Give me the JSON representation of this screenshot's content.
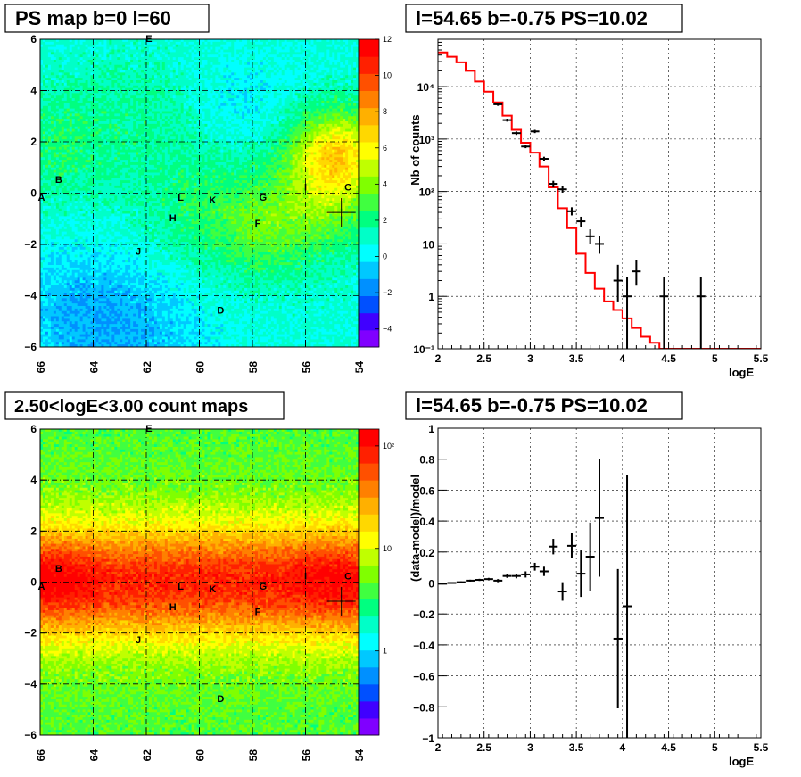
{
  "chart_data": [
    {
      "type": "heatmap",
      "title": "PS map b=0 l=60",
      "x_ticks": [
        "66",
        "64",
        "62",
        "60",
        "58",
        "56",
        "54"
      ],
      "y_ticks": [
        "6",
        "4",
        "2",
        "0",
        "−2",
        "−4",
        "−6"
      ],
      "xlim": [
        66,
        54
      ],
      "ylim": [
        -6,
        6
      ],
      "color_scale": {
        "ticks": [
          "12",
          "10",
          "8",
          "6",
          "4",
          "2",
          "0",
          "−2",
          "−4"
        ],
        "range": [
          -5,
          12
        ]
      },
      "sources": [
        {
          "label": "A",
          "l": 65.95,
          "b": -0.3
        },
        {
          "label": "B",
          "l": 65.3,
          "b": 0.4
        },
        {
          "label": "C",
          "l": 54.4,
          "b": 0.1
        },
        {
          "label": "D",
          "l": 59.2,
          "b": -4.7
        },
        {
          "label": "E",
          "l": 61.9,
          "b": 5.9
        },
        {
          "label": "F",
          "l": 57.8,
          "b": -1.3
        },
        {
          "label": "G",
          "l": 57.6,
          "b": -0.3
        },
        {
          "label": "H",
          "l": 61.0,
          "b": -1.1
        },
        {
          "label": "I",
          "l": 56.0,
          "b": 0.1
        },
        {
          "label": "J",
          "l": 62.3,
          "b": -2.4
        },
        {
          "label": "K",
          "l": 59.5,
          "b": -0.4
        },
        {
          "label": "L",
          "l": 60.7,
          "b": -0.3
        }
      ],
      "marker": {
        "l": 54.65,
        "b": -0.75
      }
    },
    {
      "type": "line",
      "title": "l=54.65 b=-0.75 PS=10.02",
      "xlabel": "logE",
      "ylabel": "Nb of counts",
      "xlim": [
        2,
        5.5
      ],
      "ylim": [
        0.1,
        80000
      ],
      "yscale": "log",
      "x_ticks": [
        "2",
        "2.5",
        "3",
        "3.5",
        "4",
        "4.5",
        "5",
        "5.5"
      ],
      "y_ticks": [
        {
          "v": 0.1,
          "label": "10⁻¹"
        },
        {
          "v": 1,
          "label": "1"
        },
        {
          "v": 10,
          "label": "10"
        },
        {
          "v": 100,
          "label": "10²"
        },
        {
          "v": 1000,
          "label": "10³"
        },
        {
          "v": 10000,
          "label": "10⁴"
        }
      ],
      "series": [
        {
          "kind": "step",
          "color": "#ff0000",
          "edges": [
            2,
            2.1,
            2.2,
            2.3,
            2.4,
            2.5,
            2.6,
            2.7,
            2.8,
            2.9,
            3.0,
            3.1,
            3.2,
            3.3,
            3.4,
            3.5,
            3.6,
            3.7,
            3.8,
            3.9,
            4.0,
            4.1,
            4.2,
            4.3,
            4.4,
            4.5,
            4.6,
            4.7,
            4.8,
            4.9,
            5.0,
            5.5
          ],
          "values": [
            45000,
            37000,
            29000,
            20000,
            12500,
            8000,
            5000,
            2800,
            1500,
            850,
            550,
            300,
            120,
            48,
            20,
            6.5,
            2.8,
            1.4,
            0.8,
            0.55,
            0.38,
            0.25,
            0.17,
            0.13,
            0.1,
            0.1,
            0.1,
            0.1,
            0.1,
            0.1,
            0.1
          ]
        },
        {
          "kind": "errorbar",
          "color": "#000000",
          "points": [
            {
              "x": 2.65,
              "y": 4600,
              "dy": [
                4300,
                4900
              ]
            },
            {
              "x": 2.75,
              "y": 2300,
              "dy": [
                2150,
                2450
              ]
            },
            {
              "x": 2.85,
              "y": 1300,
              "dy": [
                1200,
                1400
              ]
            },
            {
              "x": 2.95,
              "y": 720,
              "dy": [
                670,
                780
              ]
            },
            {
              "x": 3.05,
              "y": 1400,
              "dy": [
                1300,
                1500
              ]
            },
            {
              "x": 3.15,
              "y": 420,
              "dy": [
                380,
                460
              ]
            },
            {
              "x": 3.25,
              "y": 140,
              "dy": [
                120,
                160
              ]
            },
            {
              "x": 3.35,
              "y": 110,
              "dy": [
                95,
                125
              ]
            },
            {
              "x": 3.45,
              "y": 42,
              "dy": [
                35,
                50
              ]
            },
            {
              "x": 3.55,
              "y": 27,
              "dy": [
                21,
                33
              ]
            },
            {
              "x": 3.65,
              "y": 14,
              "dy": [
                10,
                19
              ]
            },
            {
              "x": 3.75,
              "y": 10,
              "dy": [
                6.5,
                14
              ]
            },
            {
              "x": 3.95,
              "y": 2,
              "dy": [
                0.8,
                4
              ]
            },
            {
              "x": 4.05,
              "y": 1,
              "dy": [
                0.1,
                2.3
              ]
            },
            {
              "x": 4.15,
              "y": 3,
              "dy": [
                1.6,
                5
              ]
            },
            {
              "x": 4.45,
              "y": 1,
              "dy": [
                0.1,
                2.3
              ]
            },
            {
              "x": 4.85,
              "y": 1,
              "dy": [
                0.1,
                2.3
              ]
            }
          ]
        }
      ]
    },
    {
      "type": "heatmap",
      "title": "2.50<logE<3.00 count maps",
      "x_ticks": [
        "66",
        "64",
        "62",
        "60",
        "58",
        "56",
        "54"
      ],
      "y_ticks": [
        "6",
        "4",
        "2",
        "0",
        "−2",
        "−4",
        "−6"
      ],
      "xlim": [
        66,
        54
      ],
      "ylim": [
        -6,
        6
      ],
      "color_scale": {
        "ticks": [
          "10²",
          "10",
          "1"
        ],
        "log": true
      },
      "sources": [
        {
          "label": "A",
          "l": 65.95,
          "b": -0.3
        },
        {
          "label": "B",
          "l": 65.3,
          "b": 0.4
        },
        {
          "label": "C",
          "l": 54.4,
          "b": 0.1
        },
        {
          "label": "D",
          "l": 59.2,
          "b": -4.7
        },
        {
          "label": "E",
          "l": 61.9,
          "b": 5.9
        },
        {
          "label": "F",
          "l": 57.8,
          "b": -1.3
        },
        {
          "label": "G",
          "l": 57.6,
          "b": -0.3
        },
        {
          "label": "H",
          "l": 61.0,
          "b": -1.1
        },
        {
          "label": "I",
          "l": 56.0,
          "b": 0.1
        },
        {
          "label": "J",
          "l": 62.3,
          "b": -2.4
        },
        {
          "label": "K",
          "l": 59.5,
          "b": -0.4
        },
        {
          "label": "L",
          "l": 60.7,
          "b": -0.3
        }
      ],
      "marker": {
        "l": 54.65,
        "b": -0.75
      }
    },
    {
      "type": "scatter",
      "title": "l=54.65 b=-0.75 PS=10.02",
      "xlabel": "logE",
      "ylabel": "(data-model)/model",
      "xlim": [
        2,
        5.5
      ],
      "ylim": [
        -1,
        1
      ],
      "x_ticks": [
        "2",
        "2.5",
        "3",
        "3.5",
        "4",
        "4.5",
        "5",
        "5.5"
      ],
      "y_ticks": [
        "1",
        "0.8",
        "0.6",
        "0.4",
        "0.2",
        "0",
        "−0.2",
        "−0.4",
        "−0.6",
        "−0.8",
        "−1"
      ],
      "points": [
        {
          "x": 2.05,
          "y": -0.005,
          "e": 0.004
        },
        {
          "x": 2.15,
          "y": 0.0,
          "e": 0.004
        },
        {
          "x": 2.25,
          "y": 0.005,
          "e": 0.005
        },
        {
          "x": 2.35,
          "y": 0.015,
          "e": 0.006
        },
        {
          "x": 2.45,
          "y": 0.02,
          "e": 0.007
        },
        {
          "x": 2.55,
          "y": 0.025,
          "e": 0.008
        },
        {
          "x": 2.65,
          "y": 0.015,
          "e": 0.01
        },
        {
          "x": 2.75,
          "y": 0.045,
          "e": 0.012
        },
        {
          "x": 2.85,
          "y": 0.045,
          "e": 0.015
        },
        {
          "x": 2.95,
          "y": 0.055,
          "e": 0.02
        },
        {
          "x": 3.05,
          "y": 0.105,
          "e": 0.025
        },
        {
          "x": 3.15,
          "y": 0.075,
          "e": 0.03
        },
        {
          "x": 3.25,
          "y": 0.235,
          "e": 0.05
        },
        {
          "x": 3.35,
          "y": -0.055,
          "e": 0.06
        },
        {
          "x": 3.45,
          "y": 0.24,
          "e": 0.08
        },
        {
          "x": 3.55,
          "y": 0.06,
          "e": 0.15
        },
        {
          "x": 3.65,
          "y": 0.17,
          "e": 0.22
        },
        {
          "x": 3.75,
          "y": 0.42,
          "e": 0.38
        },
        {
          "x": 3.95,
          "y": -0.36,
          "e": 0.45
        },
        {
          "x": 4.05,
          "y": -0.15,
          "e": 0.85
        }
      ]
    }
  ]
}
